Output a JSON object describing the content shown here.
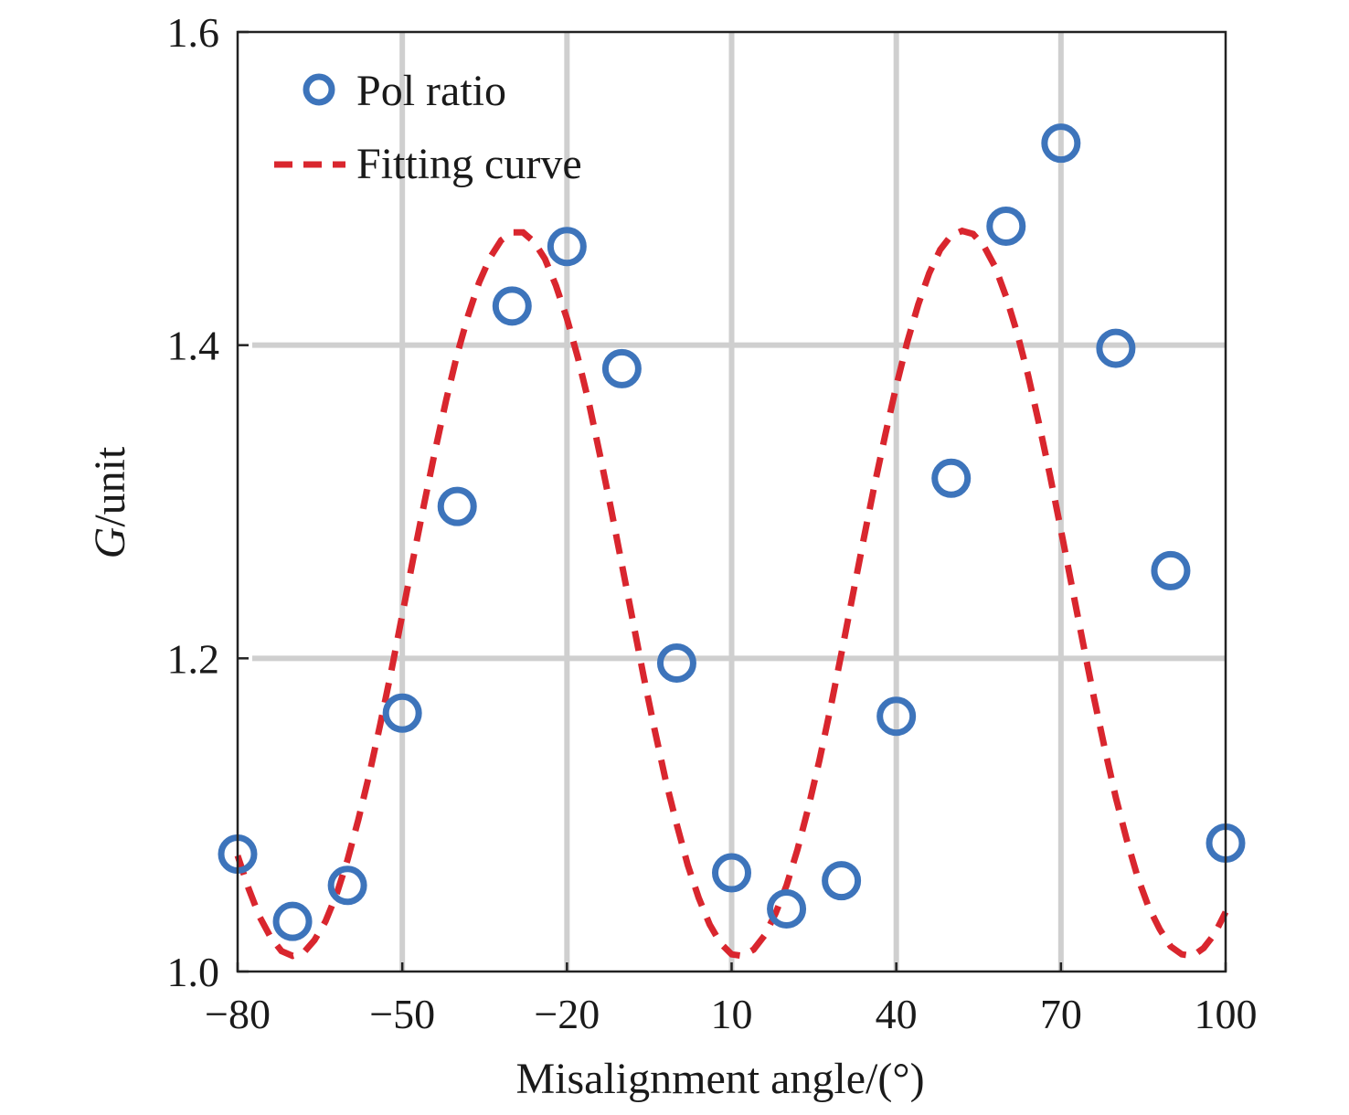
{
  "chart_data": {
    "type": "scatter",
    "xlabel": "Misalignment angle/(°)",
    "ylabel_italic": "G",
    "ylabel_rest": "/unit",
    "xlim": [
      -80,
      100
    ],
    "ylim": [
      1.0,
      1.6
    ],
    "x_ticks": [
      -80,
      -50,
      -20,
      10,
      40,
      70,
      100
    ],
    "x_tick_labels": [
      "−80",
      "−50",
      "−20",
      "10",
      "40",
      "70",
      "100"
    ],
    "y_ticks": [
      1.0,
      1.2,
      1.4,
      1.6
    ],
    "y_tick_labels": [
      "1.0",
      "1.2",
      "1.4",
      "1.6"
    ],
    "grid": true,
    "legend_position": "top-left",
    "series": [
      {
        "name": "Pol ratio",
        "kind": "markers",
        "marker": "open-circle",
        "color": "#3d74bb",
        "x": [
          -80,
          -70,
          -60,
          -50,
          -40,
          -30,
          -20,
          -10,
          0,
          10,
          20,
          30,
          40,
          50,
          60,
          70,
          80,
          90,
          100
        ],
        "y": [
          1.075,
          1.032,
          1.055,
          1.165,
          1.297,
          1.425,
          1.463,
          1.385,
          1.197,
          1.063,
          1.04,
          1.058,
          1.163,
          1.315,
          1.476,
          1.529,
          1.398,
          1.256,
          1.082
        ]
      },
      {
        "name": "Fitting curve",
        "kind": "line",
        "style": "dashed",
        "color": "#d9262e",
        "x": [
          -80,
          -78,
          -76,
          -74,
          -72,
          -70,
          -68,
          -66,
          -64,
          -62,
          -60,
          -58,
          -56,
          -54,
          -52,
          -50,
          -48,
          -46,
          -44,
          -42,
          -40,
          -38,
          -36,
          -34,
          -32,
          -30,
          -28,
          -26,
          -24,
          -22,
          -20,
          -18,
          -16,
          -14,
          -12,
          -10,
          -8,
          -6,
          -4,
          -2,
          0,
          2,
          4,
          6,
          8,
          10,
          12,
          14,
          16,
          18,
          20,
          22,
          24,
          26,
          28,
          30,
          32,
          34,
          36,
          38,
          40,
          42,
          44,
          46,
          48,
          50,
          52,
          54,
          56,
          58,
          60,
          62,
          64,
          66,
          68,
          70,
          72,
          74,
          76,
          78,
          80,
          82,
          84,
          86,
          88,
          90,
          92,
          94,
          96,
          98,
          100
        ],
        "y": [
          1.074,
          1.053,
          1.035,
          1.022,
          1.013,
          1.01,
          1.012,
          1.02,
          1.032,
          1.049,
          1.071,
          1.097,
          1.126,
          1.158,
          1.192,
          1.228,
          1.264,
          1.299,
          1.333,
          1.365,
          1.394,
          1.419,
          1.44,
          1.456,
          1.467,
          1.472,
          1.472,
          1.466,
          1.455,
          1.438,
          1.417,
          1.392,
          1.363,
          1.33,
          1.296,
          1.26,
          1.224,
          1.188,
          1.154,
          1.122,
          1.094,
          1.068,
          1.047,
          1.03,
          1.018,
          1.011,
          1.01,
          1.014,
          1.023,
          1.037,
          1.055,
          1.078,
          1.105,
          1.135,
          1.168,
          1.203,
          1.239,
          1.275,
          1.31,
          1.343,
          1.374,
          1.402,
          1.426,
          1.446,
          1.461,
          1.47,
          1.473,
          1.471,
          1.463,
          1.45,
          1.431,
          1.408,
          1.381,
          1.35,
          1.317,
          1.282,
          1.246,
          1.21,
          1.175,
          1.142,
          1.111,
          1.084,
          1.06,
          1.041,
          1.027,
          1.016,
          1.011,
          1.01,
          1.015,
          1.024,
          1.038
        ]
      }
    ]
  }
}
